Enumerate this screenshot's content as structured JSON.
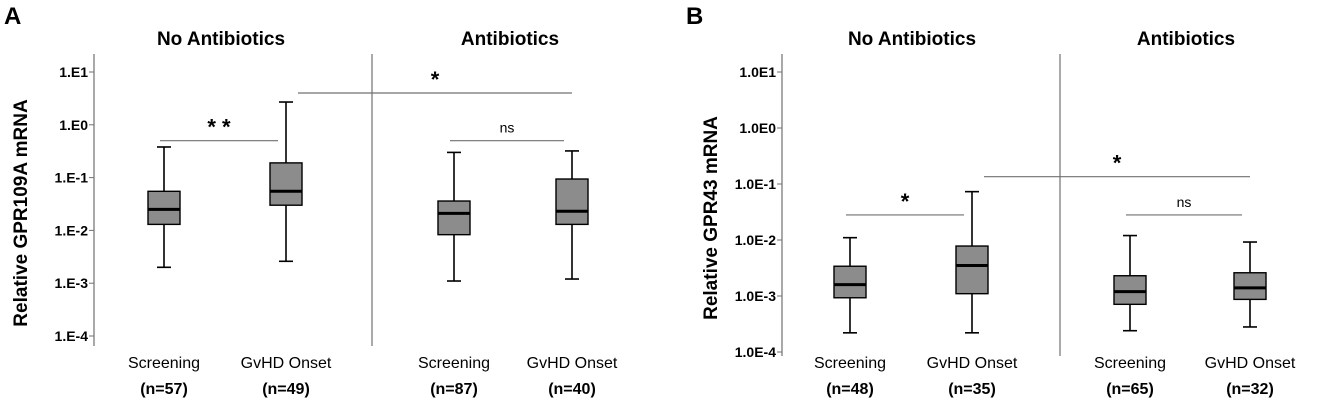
{
  "colors": {
    "box_fill": "#8c8c8c",
    "line": "#000000",
    "axis": "#707070"
  },
  "chart_data": [
    {
      "type": "boxplot",
      "panel_label": "A",
      "ylabel": "Relative GPR109A mRNA",
      "yscale": "log",
      "ylim": [
        0.0001,
        10
      ],
      "yticks": [
        10,
        1,
        0.1,
        0.01,
        0.001,
        0.0001
      ],
      "yticklabels": [
        "1.E1",
        "1.E0",
        "1.E-1",
        "1.E-2",
        "1.E-3",
        "1.E-4"
      ],
      "groups": [
        {
          "title": "No Antibiotics",
          "boxes": [
            {
              "label": "Screening",
              "n": "(n=57)",
              "min": 0.002,
              "q1": 0.013,
              "median": 0.025,
              "q3": 0.055,
              "max": 0.38
            },
            {
              "label": "GvHD Onset",
              "n": "(n=49)",
              "min": 0.0026,
              "q1": 0.03,
              "median": 0.055,
              "q3": 0.19,
              "max": 2.7
            }
          ]
        },
        {
          "title": "Antibiotics",
          "boxes": [
            {
              "label": "Screening",
              "n": "(n=87)",
              "min": 0.0011,
              "q1": 0.0083,
              "median": 0.021,
              "q3": 0.036,
              "max": 0.3
            },
            {
              "label": "GvHD Onset",
              "n": "(n=40)",
              "min": 0.0012,
              "q1": 0.013,
              "median": 0.023,
              "q3": 0.094,
              "max": 0.32
            }
          ]
        }
      ],
      "annotations": [
        {
          "text": "* *",
          "from": [
            0,
            0
          ],
          "to": [
            0,
            1
          ],
          "y": 0.5
        },
        {
          "text": "ns",
          "from": [
            1,
            0
          ],
          "to": [
            1,
            1
          ],
          "y": 0.5
        },
        {
          "text": "*",
          "from": [
            0,
            1
          ],
          "to": [
            1,
            1
          ],
          "y": 4.0
        }
      ]
    },
    {
      "type": "boxplot",
      "panel_label": "B",
      "ylabel": "Relative GPR43 mRNA",
      "yscale": "log",
      "ylim": [
        0.0001,
        10
      ],
      "yticks": [
        10,
        1,
        0.1,
        0.01,
        0.001,
        0.0001
      ],
      "yticklabels": [
        "1.0E1",
        "1.0E0",
        "1.0E-1",
        "1.0E-2",
        "1.0E-3",
        "1.0E-4"
      ],
      "groups": [
        {
          "title": "No Antibiotics",
          "boxes": [
            {
              "label": "Screening",
              "n": "(n=48)",
              "min": 0.00022,
              "q1": 0.00093,
              "median": 0.0016,
              "q3": 0.0034,
              "max": 0.011
            },
            {
              "label": "GvHD Onset",
              "n": "(n=35)",
              "min": 0.00022,
              "q1": 0.0011,
              "median": 0.0035,
              "q3": 0.0078,
              "max": 0.073
            }
          ]
        },
        {
          "title": "Antibiotics",
          "boxes": [
            {
              "label": "Screening",
              "n": "(n=65)",
              "min": 0.00024,
              "q1": 0.00071,
              "median": 0.0012,
              "q3": 0.0023,
              "max": 0.012
            },
            {
              "label": "GvHD Onset",
              "n": "(n=32)",
              "min": 0.00028,
              "q1": 0.00087,
              "median": 0.0014,
              "q3": 0.0026,
              "max": 0.0092
            }
          ]
        }
      ],
      "annotations": [
        {
          "text": "*",
          "from": [
            0,
            0
          ],
          "to": [
            0,
            1
          ],
          "y": 0.028
        },
        {
          "text": "ns",
          "from": [
            1,
            0
          ],
          "to": [
            1,
            1
          ],
          "y": 0.028
        },
        {
          "text": "*",
          "from": [
            0,
            1
          ],
          "to": [
            1,
            1
          ],
          "y": 0.135
        }
      ]
    }
  ]
}
